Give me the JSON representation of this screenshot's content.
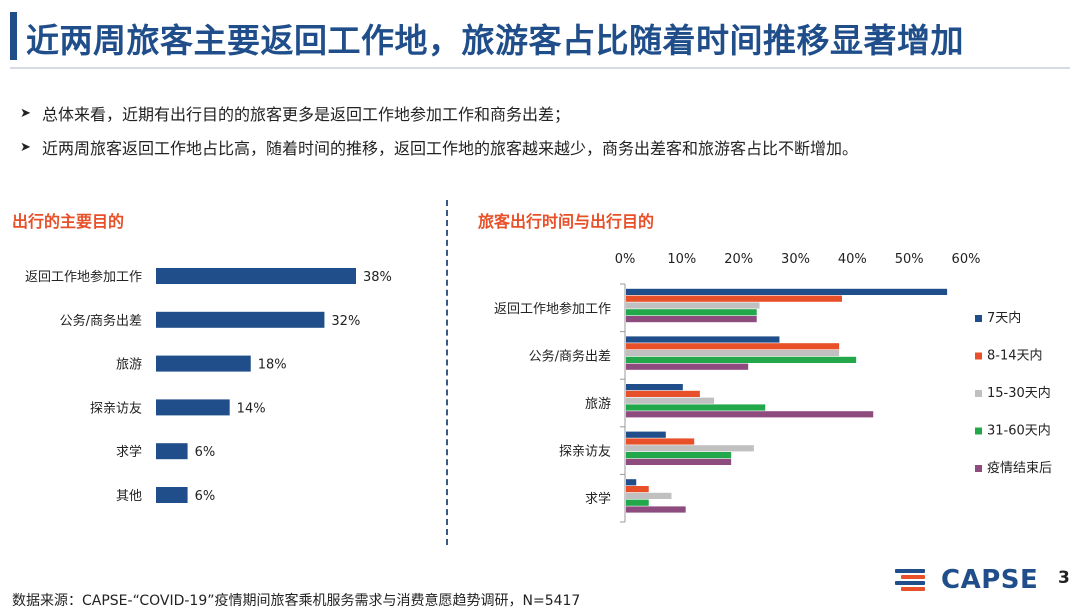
{
  "header": {
    "title": "近两周旅客主要返回工作地，旅游客占比随着时间推移显著增加"
  },
  "bullets": [
    "总体来看，近期有出行目的的旅客更多是返回工作地参加工作和商务出差；",
    "近两周旅客返回工作地占比高，随着时间的推移，返回工作地的旅客越来越少，商务出差客和旅游客占比不断增加。"
  ],
  "left_section": {
    "title": "出行的主要目的"
  },
  "right_section": {
    "title": "旅客出行时间与出行目的"
  },
  "footer": {
    "source": "数据来源：CAPSE-“COVID-19”疫情期间旅客乘机服务需求与消费意愿趋势调研，N=5417",
    "logo_text": "CAPSE",
    "page_number": "3"
  },
  "colors": {
    "primary": "#1f4e8a",
    "accent": "#e8502a",
    "series": [
      "#1f4e8a",
      "#e8502a",
      "#c0c0c0",
      "#22a84a",
      "#8e4b7e"
    ]
  },
  "chart_data": [
    {
      "type": "bar",
      "orientation": "horizontal",
      "title": "出行的主要目的",
      "categories": [
        "返回工作地参加工作",
        "公务/商务出差",
        "旅游",
        "探亲访友",
        "求学",
        "其他"
      ],
      "values": [
        38,
        32,
        18,
        14,
        6,
        6
      ],
      "value_labels": [
        "38%",
        "32%",
        "18%",
        "14%",
        "6%",
        "6%"
      ],
      "xlim": [
        0,
        40
      ],
      "color": "#1f4e8a"
    },
    {
      "type": "bar",
      "orientation": "horizontal",
      "title": "旅客出行时间与出行目的",
      "categories": [
        "返回工作地参加工作",
        "公务/商务出差",
        "旅游",
        "探亲访友",
        "求学"
      ],
      "series": [
        {
          "name": "7天内",
          "color": "#1f4e8a",
          "values": [
            56.5,
            27,
            10,
            7,
            1.8
          ]
        },
        {
          "name": "8-14天内",
          "color": "#e8502a",
          "values": [
            38,
            37.5,
            13,
            12,
            4
          ]
        },
        {
          "name": "15-30天内",
          "color": "#c0c0c0",
          "values": [
            23.5,
            37.5,
            15.5,
            22.5,
            8
          ]
        },
        {
          "name": "31-60天内",
          "color": "#22a84a",
          "values": [
            23,
            40.5,
            24.5,
            18.5,
            4
          ]
        },
        {
          "name": "疫情结束后",
          "color": "#8e4b7e",
          "values": [
            23,
            21.5,
            43.5,
            18.5,
            10.5
          ]
        }
      ],
      "xlim": [
        0,
        60
      ],
      "xticks": [
        0,
        10,
        20,
        30,
        40,
        50,
        60
      ],
      "xtick_labels": [
        "0%",
        "10%",
        "20%",
        "30%",
        "40%",
        "50%",
        "60%"
      ],
      "axis_position": "top",
      "legend_position": "right"
    }
  ]
}
